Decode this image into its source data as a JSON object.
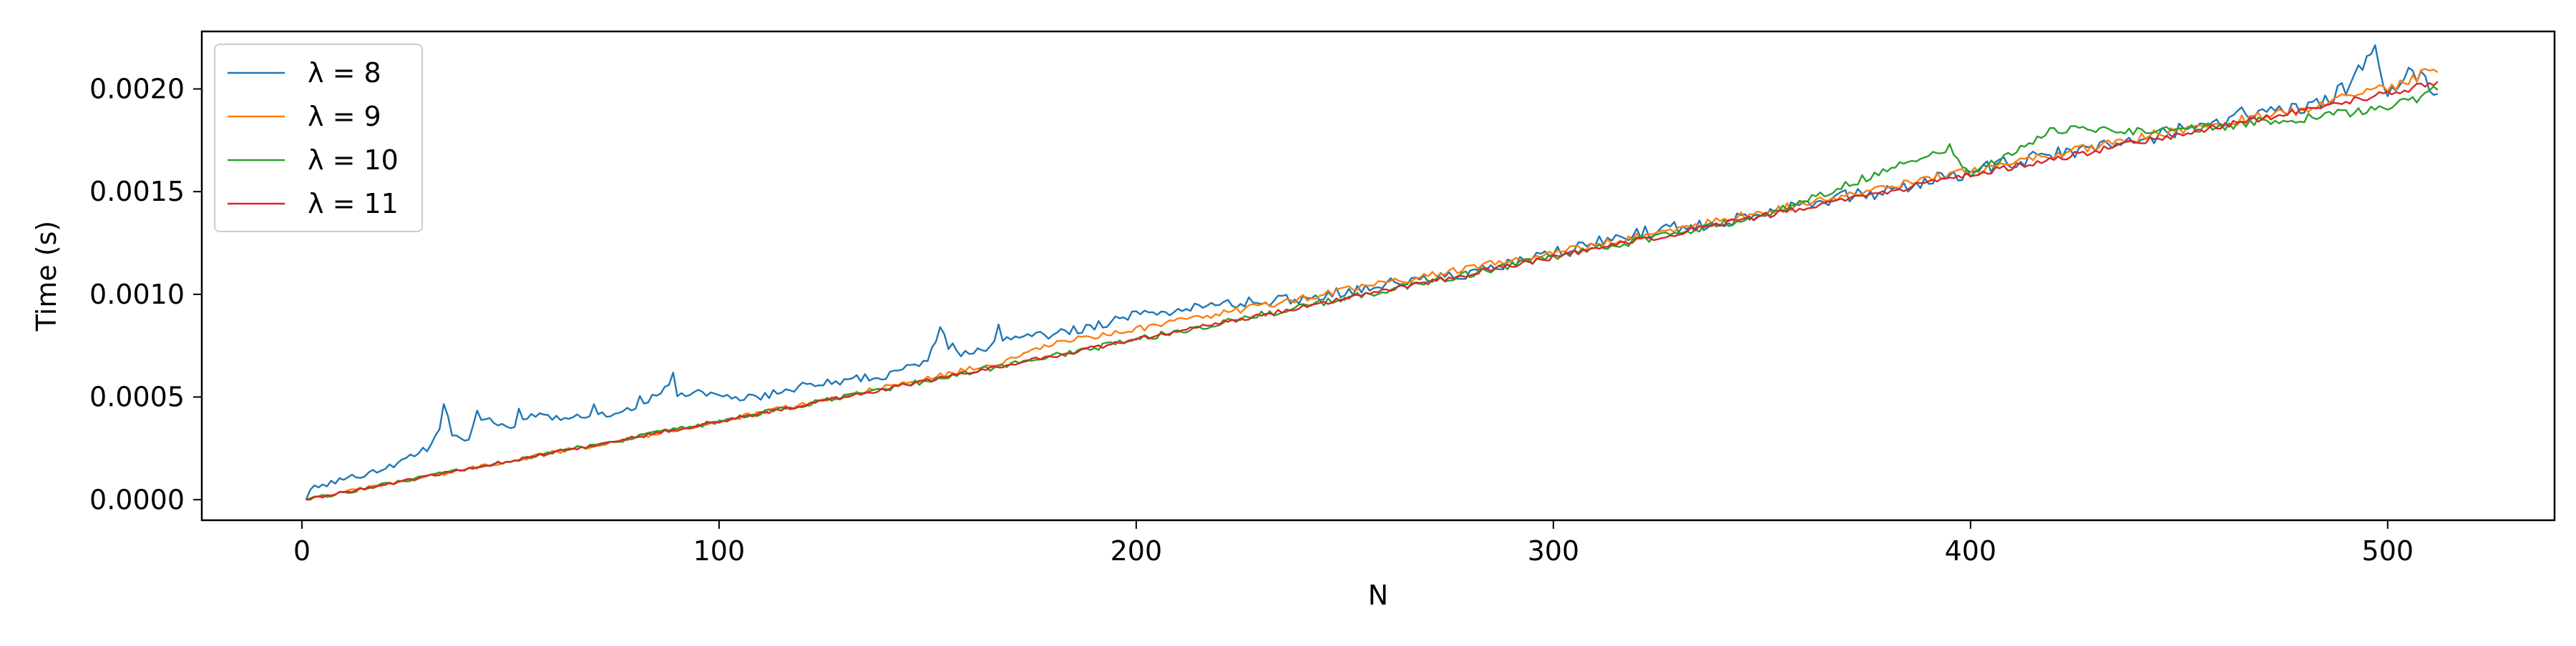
{
  "chart_data": {
    "type": "line",
    "title": "",
    "xlabel": "N",
    "ylabel": "Time (s)",
    "xlim": [
      -24,
      540
    ],
    "ylim": [
      -0.0001,
      0.00228
    ],
    "x_ticks": [
      0,
      100,
      200,
      300,
      400,
      500
    ],
    "x_tick_labels": [
      "0",
      "100",
      "200",
      "300",
      "400",
      "500"
    ],
    "y_ticks": [
      0.0,
      0.0005,
      0.001,
      0.0015,
      0.002
    ],
    "y_tick_labels": [
      "0.0000",
      "0.0005",
      "0.0010",
      "0.0015",
      "0.0020"
    ],
    "grid": false,
    "legend_position": "top-left",
    "x_range": [
      1,
      512
    ],
    "series": [
      {
        "name": "λ = 8",
        "color": "#1f77b4",
        "x": [
          1,
          2,
          10,
          20,
          30,
          33,
          34,
          35,
          36,
          40,
          44,
          47,
          50,
          56,
          60,
          70,
          80,
          88,
          89,
          90,
          95,
          100,
          110,
          120,
          130,
          140,
          150,
          153,
          155,
          160,
          170,
          180,
          190,
          200,
          220,
          240,
          260,
          280,
          300,
          320,
          340,
          360,
          380,
          400,
          420,
          440,
          460,
          470,
          480,
          490,
          497,
          500,
          505,
          512
        ],
        "values": [
          0.0,
          5e-05,
          0.0001,
          0.00015,
          0.00025,
          0.00035,
          0.00045,
          0.00042,
          0.0003,
          0.0003,
          0.0004,
          0.00035,
          0.00035,
          0.00042,
          0.0004,
          0.0004,
          0.00045,
          0.00055,
          0.00063,
          0.0005,
          0.00052,
          0.0005,
          0.0005,
          0.00055,
          0.00058,
          0.0006,
          0.00068,
          0.00084,
          0.00075,
          0.0007,
          0.0008,
          0.0008,
          0.00085,
          0.0009,
          0.00095,
          0.00098,
          0.00105,
          0.0011,
          0.0012,
          0.0013,
          0.00135,
          0.00145,
          0.0015,
          0.0016,
          0.00168,
          0.00175,
          0.00185,
          0.0019,
          0.0019,
          0.002,
          0.00218,
          0.00195,
          0.0021,
          0.00198
        ]
      },
      {
        "name": "λ = 9",
        "color": "#ff7f0e",
        "x": [
          1,
          50,
          100,
          150,
          170,
          180,
          200,
          250,
          300,
          350,
          400,
          450,
          480,
          490,
          500,
          512
        ],
        "values": [
          0.0,
          0.00019,
          0.00038,
          0.00059,
          0.00068,
          0.00076,
          0.00083,
          0.00102,
          0.0012,
          0.0014,
          0.0016,
          0.0018,
          0.0019,
          0.00198,
          0.002,
          0.0021
        ]
      },
      {
        "name": "λ = 10",
        "color": "#2ca02c",
        "x": [
          1,
          50,
          100,
          150,
          200,
          250,
          300,
          350,
          395,
          400,
          420,
          450,
          500,
          512
        ],
        "values": [
          0.0,
          0.00019,
          0.00038,
          0.00058,
          0.00078,
          0.00098,
          0.00118,
          0.00138,
          0.00172,
          0.00158,
          0.0018,
          0.0018,
          0.0019,
          0.002
        ]
      },
      {
        "name": "λ = 11",
        "color": "#d62728",
        "x": [
          1,
          50,
          100,
          150,
          200,
          250,
          300,
          350,
          400,
          450,
          500,
          512
        ],
        "values": [
          0.0,
          0.00019,
          0.00038,
          0.00058,
          0.00078,
          0.00098,
          0.00118,
          0.00138,
          0.00158,
          0.00178,
          0.00198,
          0.00203
        ]
      }
    ]
  }
}
